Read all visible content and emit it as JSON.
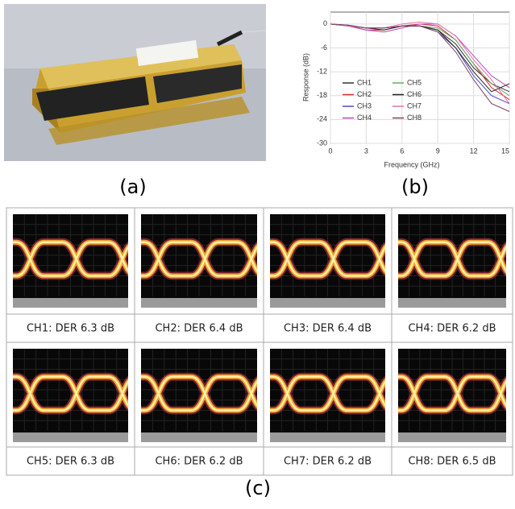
{
  "panels": {
    "a": "(a)",
    "b": "(b)",
    "c": "(c)"
  },
  "chart_data": {
    "type": "line",
    "x_label": "Frequency (GHz)",
    "y_label": "Response (dB)",
    "x": [
      0,
      1.5,
      3,
      4.5,
      6,
      7.5,
      9,
      10.5,
      12,
      13.5,
      15
    ],
    "xlim": [
      0,
      15
    ],
    "xticks": [
      0,
      3,
      6,
      9,
      12,
      15
    ],
    "ylim": [
      -30,
      3
    ],
    "yticks": [
      0,
      -6,
      -12,
      -18,
      -24,
      -30
    ],
    "grid": true,
    "legend": "left",
    "series": [
      {
        "name": "CH1",
        "color": "#333333",
        "values": [
          0,
          -0.5,
          -1,
          -1,
          -0.5,
          -0.5,
          -1.5,
          -5,
          -11,
          -15,
          -17
        ]
      },
      {
        "name": "CH2",
        "color": "#d83030",
        "values": [
          0,
          -0.5,
          -1.5,
          -1.5,
          -0.5,
          0,
          -0.5,
          -4,
          -10,
          -16,
          -19
        ]
      },
      {
        "name": "CH3",
        "color": "#4a4acc",
        "values": [
          0,
          -0.3,
          -1,
          -1,
          -0.5,
          -0.5,
          -2,
          -6,
          -13,
          -18,
          -20
        ]
      },
      {
        "name": "CH4",
        "color": "#c040c0",
        "values": [
          0,
          -0.5,
          -1.5,
          -2,
          -1,
          0,
          0,
          -3,
          -8,
          -13,
          -16
        ]
      },
      {
        "name": "CH5",
        "color": "#66aa66",
        "values": [
          0,
          -0.5,
          -1,
          -1,
          -0.5,
          -0.5,
          -1,
          -4,
          -10,
          -15,
          -18
        ]
      },
      {
        "name": "CH6",
        "color": "#222222",
        "values": [
          0,
          -0.5,
          -1,
          -1.5,
          -0.5,
          -0.5,
          -1.5,
          -6,
          -12,
          -17,
          -15
        ]
      },
      {
        "name": "CH7",
        "color": "#e070b0",
        "values": [
          0,
          -0.5,
          -1,
          -1,
          0,
          0.5,
          0,
          -3,
          -9,
          -14,
          -20
        ]
      },
      {
        "name": "CH8",
        "color": "#804060",
        "values": [
          0,
          -0.3,
          -1,
          -1,
          -0.5,
          -0.5,
          -2,
          -7,
          -14,
          -20,
          -22
        ]
      }
    ]
  },
  "eye_diagrams": [
    "CH1: DER 6.3 dB",
    "CH2: DER 6.4 dB",
    "CH3: DER 6.4 dB",
    "CH4: DER 6.2 dB",
    "CH5: DER 6.3 dB",
    "CH6: DER 6.2 dB",
    "CH7: DER 6.2 dB",
    "CH8: DER 6.5 dB"
  ]
}
